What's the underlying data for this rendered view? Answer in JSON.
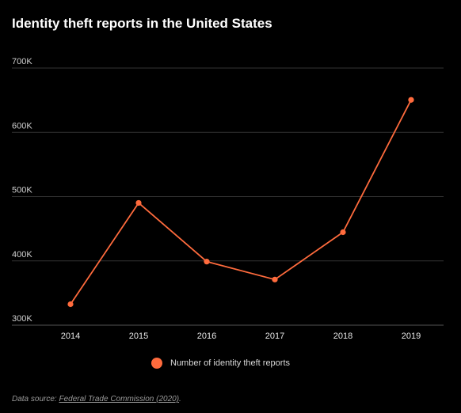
{
  "chart_data": {
    "type": "line",
    "title": "Identity theft reports in the United States",
    "xlabel": "",
    "ylabel": "",
    "categories": [
      "2014",
      "2015",
      "2016",
      "2017",
      "2018",
      "2019"
    ],
    "series": [
      {
        "name": "Number of identity theft reports",
        "values": [
          332600,
          490200,
          398900,
          371000,
          444600,
          650500
        ],
        "color": "#ff6b3d"
      }
    ],
    "ylim": [
      300000,
      700000
    ],
    "yticks": [
      300000,
      400000,
      500000,
      600000,
      700000
    ],
    "ytick_labels": [
      "300K",
      "400K",
      "500K",
      "600K",
      "700K"
    ],
    "grid": true,
    "legend_position": "bottom-center"
  },
  "source": {
    "prefix": "Data source: ",
    "link_text": "Federal Trade Commission (2020)",
    "suffix": "."
  },
  "colors": {
    "background": "#000000",
    "grid": "#333333",
    "line": "#ff6b3d"
  }
}
